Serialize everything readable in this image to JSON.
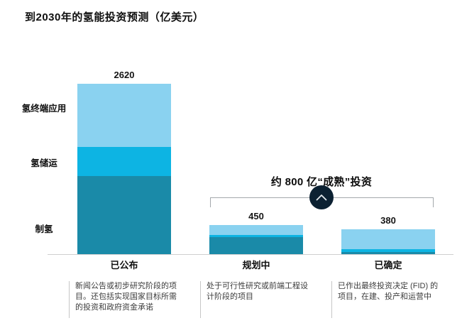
{
  "chart_data": {
    "type": "bar",
    "stacked": true,
    "title": "到2030年的氢能投资预测（亿美元）",
    "value_unit": "亿美元",
    "categories": [
      "已公布",
      "规划中",
      "已确定"
    ],
    "totals": [
      2620,
      450,
      380
    ],
    "total_labels": [
      "2620",
      "450",
      "380"
    ],
    "segment_labels_bottom_up": [
      "制氢",
      "氢储运",
      "氢终端应用"
    ],
    "series": [
      {
        "name": "制氢",
        "color": "#1a8aa8",
        "values": [
          1205,
          262,
          38
        ]
      },
      {
        "name": "氢储运",
        "color": "#0db4e3",
        "values": [
          445,
          38,
          33
        ]
      },
      {
        "name": "氢终端应用",
        "color": "#8ad2f0",
        "values": [
          970,
          150,
          309
        ]
      }
    ],
    "segment_values_estimated": true,
    "ylim": [
      0,
      2620
    ],
    "grid": false,
    "annotation": {
      "text": "约 800 亿“成熟”投资",
      "covers": [
        "规划中",
        "已确定"
      ],
      "icon": "chevron-up-circle",
      "icon_color": "#0c2132"
    },
    "axis_color": "#cfcfcf"
  },
  "footnotes": [
    "新闻公告或初步研究阶段的项目。还包括实现国家目标所需的投资和政府资金承诺",
    "处于可行性研究或前端工程设计阶段的项目",
    "已作出最终投资决定 (FID) 的项目，在建、投产和运营中"
  ]
}
